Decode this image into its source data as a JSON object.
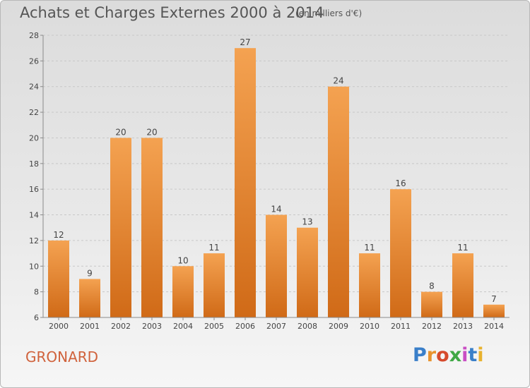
{
  "header": {
    "title": "Achats et Charges Externes 2000 à 2014",
    "unit": "(en milliers d'€)"
  },
  "footer": {
    "commune": "GRONARD",
    "logo_text": "Proxiti",
    "logo_colors": [
      "#3a7fc9",
      "#e8932e",
      "#d64a2c",
      "#3fa845",
      "#c94ec4",
      "#3a7fc9",
      "#e8b22e"
    ]
  },
  "colors": {
    "bar_top": "#f4a251",
    "bar_bottom": "#d06a17",
    "axis": "#8a8a8a",
    "grid": "#c8c8c8",
    "label": "#444444"
  },
  "chart_data": {
    "type": "bar",
    "title": "Achats et Charges Externes 2000 à 2014",
    "subtitle": "(en milliers d'€)",
    "categories": [
      "2000",
      "2001",
      "2002",
      "2003",
      "2004",
      "2005",
      "2006",
      "2007",
      "2008",
      "2009",
      "2010",
      "2011",
      "2012",
      "2013",
      "2014"
    ],
    "values": [
      12,
      9,
      20,
      20,
      10,
      11,
      27,
      14,
      13,
      24,
      11,
      16,
      8,
      11,
      7
    ],
    "yticks": [
      6,
      8,
      10,
      12,
      14,
      16,
      18,
      20,
      22,
      24,
      26,
      28
    ],
    "ylim": [
      6,
      28
    ],
    "grid": true,
    "data_labels": true,
    "xlabel": "",
    "ylabel": ""
  }
}
